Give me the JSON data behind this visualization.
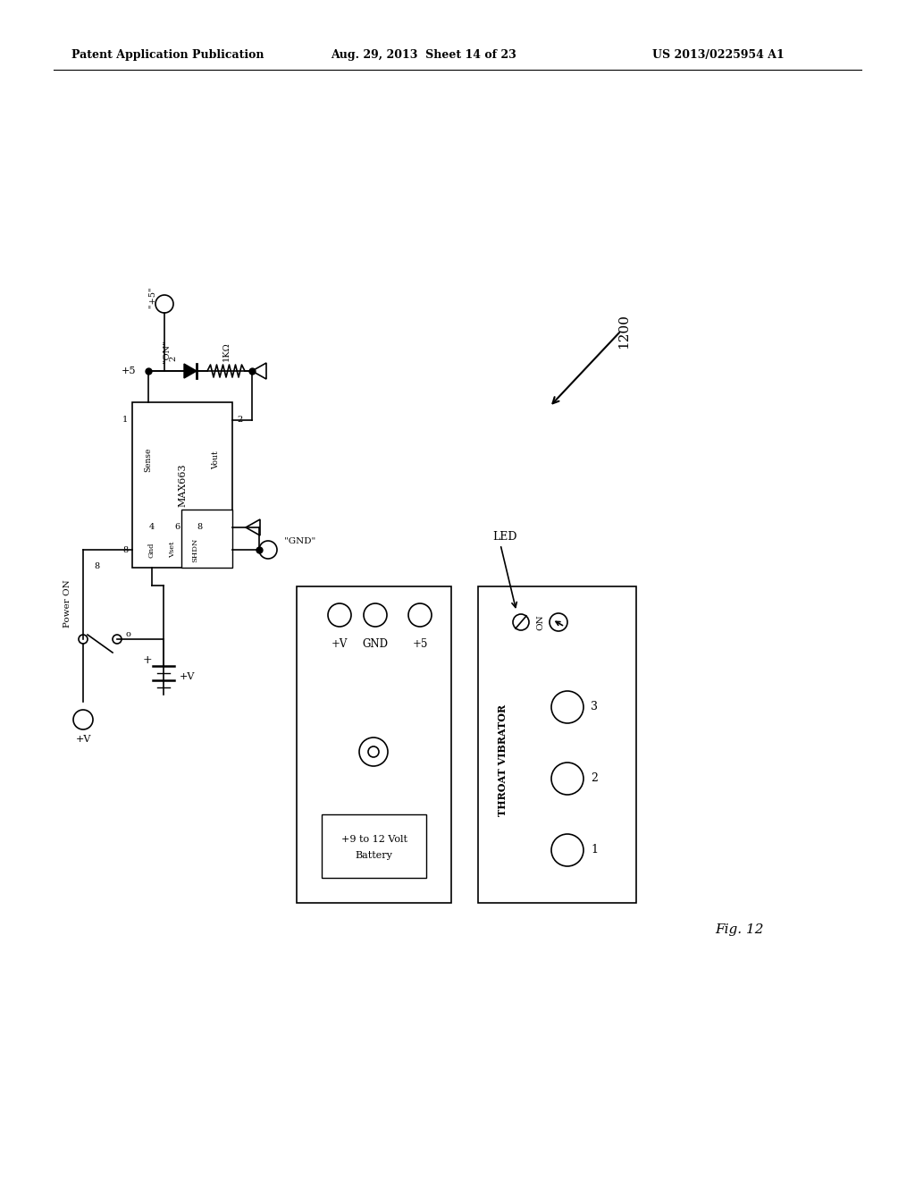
{
  "bg_color": "#ffffff",
  "header_left": "Patent Application Publication",
  "header_center": "Aug. 29, 2013  Sheet 14 of 23",
  "header_right": "US 2013/0225954 A1",
  "fig_label": "Fig. 12",
  "ref_number": "1200"
}
